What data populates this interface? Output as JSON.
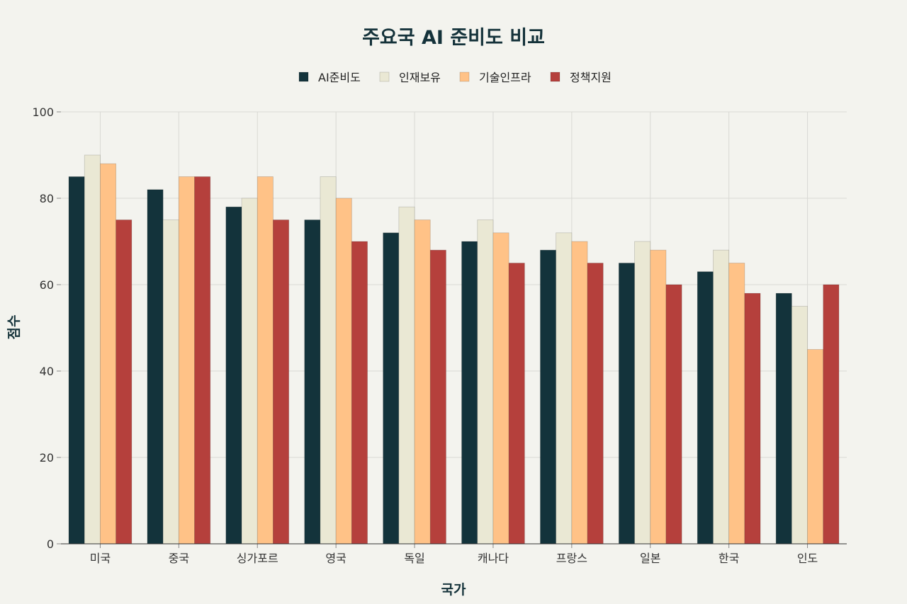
{
  "chart_data": {
    "type": "bar",
    "title": "주요국 AI 준비도 비교",
    "xlabel": "국가",
    "ylabel": "점수",
    "ylim": [
      0,
      100
    ],
    "yticks": [
      0,
      20,
      40,
      60,
      80,
      100
    ],
    "grid": true,
    "legend_position": "top",
    "categories": [
      "미국",
      "중국",
      "싱가포르",
      "영국",
      "독일",
      "캐나다",
      "프랑스",
      "일본",
      "한국",
      "인도"
    ],
    "series": [
      {
        "name": "AI준비도",
        "color": "#13333B",
        "values": [
          85,
          82,
          78,
          75,
          72,
          70,
          68,
          65,
          63,
          58
        ]
      },
      {
        "name": "인재보유",
        "color": "#EAE8D4",
        "values": [
          90,
          75,
          80,
          85,
          78,
          75,
          72,
          70,
          68,
          55
        ]
      },
      {
        "name": "기술인프라",
        "color": "#FFC287",
        "values": [
          88,
          85,
          85,
          80,
          75,
          72,
          70,
          68,
          65,
          45
        ]
      },
      {
        "name": "정책지원",
        "color": "#B5403C",
        "values": [
          75,
          85,
          75,
          70,
          68,
          65,
          65,
          60,
          58,
          60
        ]
      }
    ]
  }
}
